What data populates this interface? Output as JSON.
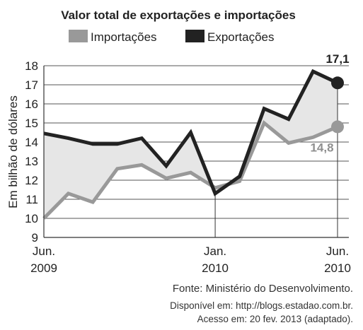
{
  "chart_data": {
    "type": "line",
    "title": "Valor total de exportações e importações",
    "ylabel": "Em bilhão de dólares",
    "xlabel": "",
    "ylim": [
      9,
      18
    ],
    "yticks": [
      9,
      10,
      11,
      12,
      13,
      14,
      15,
      16,
      17,
      18
    ],
    "x": [
      "2009-06",
      "2009-07",
      "2009-08",
      "2009-09",
      "2009-10",
      "2009-11",
      "2009-12",
      "2010-01",
      "2010-02",
      "2010-03",
      "2010-04",
      "2010-05",
      "2010-06"
    ],
    "xtick_labels": [
      {
        "line1": "Jun.",
        "line2": "2009"
      },
      {
        "line1": "Jan.",
        "line2": "2010"
      },
      {
        "line1": "Jun.",
        "line2": "2010"
      }
    ],
    "series": [
      {
        "name": "Importações",
        "color": "#999999",
        "values": [
          10.0,
          11.3,
          10.85,
          12.6,
          12.8,
          12.1,
          12.4,
          11.6,
          11.95,
          15.0,
          13.95,
          14.25,
          14.8
        ]
      },
      {
        "name": "Exportações",
        "color": "#222222",
        "values": [
          14.45,
          14.2,
          13.9,
          13.9,
          14.2,
          12.75,
          14.5,
          11.3,
          12.2,
          15.75,
          15.2,
          17.7,
          17.1
        ]
      }
    ],
    "fill_between_color": "#e6e6e6",
    "annotations": [
      {
        "series": "Exportações",
        "text": "17,1"
      },
      {
        "series": "Importações",
        "text": "14,8"
      }
    ],
    "grid": "horizontal",
    "legend_placement": "top"
  },
  "source": {
    "line1": "Fonte: Ministério do Desenvolvimento.",
    "line2": "Disponível em: http://blogs.estadao.com.br.",
    "line3": "Acesso em: 20 fev. 2013 (adaptado)."
  }
}
